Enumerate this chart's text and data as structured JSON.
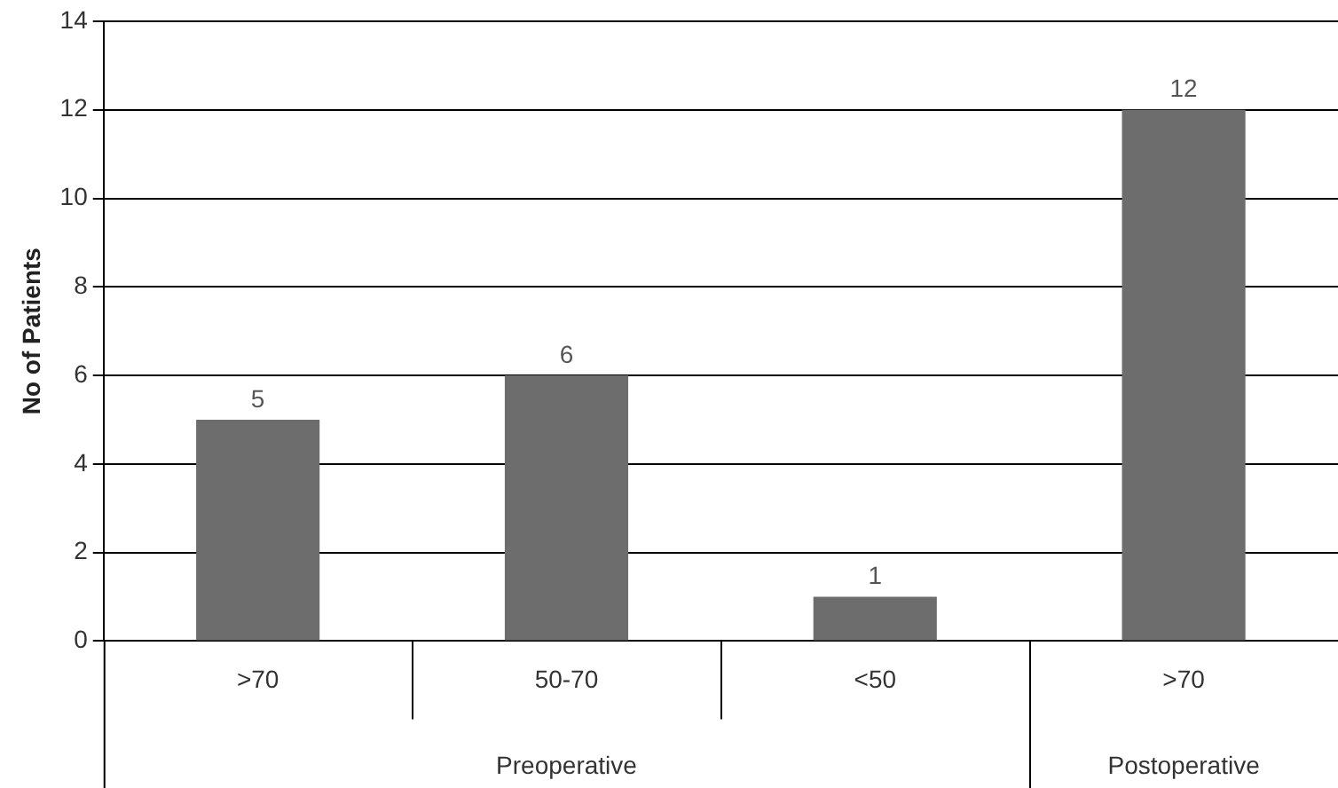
{
  "chart_data": {
    "type": "bar",
    "ylabel": "No of Patients",
    "categories": [
      ">70",
      "50-70",
      "<50",
      ">70"
    ],
    "values": [
      5,
      6,
      1,
      12
    ],
    "color": "#6d6d6d",
    "ylim": [
      0,
      14
    ],
    "yticks": [
      0,
      2,
      4,
      6,
      8,
      10,
      12,
      14
    ],
    "grid": "y",
    "data_labels": true,
    "legend": false,
    "annotations": [
      "Preoperative",
      "Postoperative"
    ]
  }
}
